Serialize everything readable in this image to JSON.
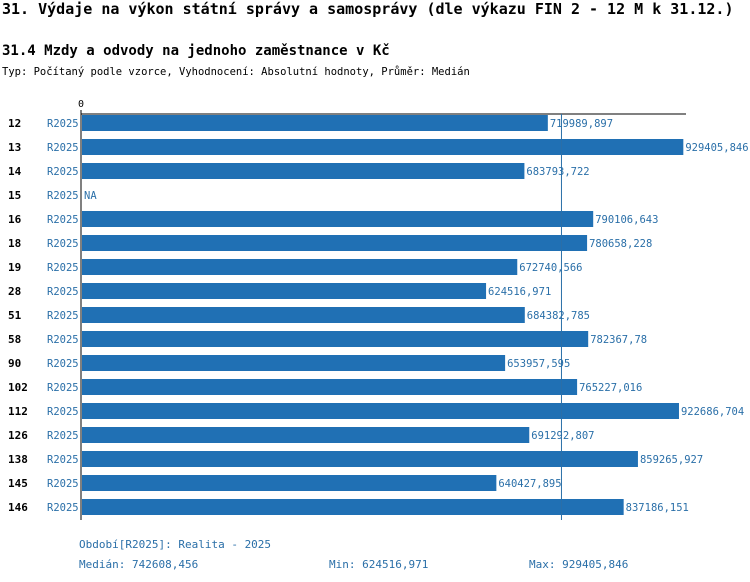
{
  "header": {
    "title": "31. Výdaje na výkon státní správy a samosprávy (dle výkazu FIN 2 - 12 M k 31.12.)",
    "subtitle": "31.4 Mzdy a odvody na jednoho zaměstnance v Kč",
    "meta": "Typ: Počítaný podle vzorce, Vyhodnocení: Absolutní hodnoty, Průměr: Medián"
  },
  "chart_data": {
    "type": "bar",
    "orientation": "horizontal",
    "axis_zero_label": "0",
    "xlim": [
      0,
      1000000
    ],
    "median": 742608.456,
    "series_label": "R2025",
    "rows": [
      {
        "id": "12",
        "series": "R2025",
        "value": 719989.897,
        "label": "719989,897"
      },
      {
        "id": "13",
        "series": "R2025",
        "value": 929405.846,
        "label": "929405,846"
      },
      {
        "id": "14",
        "series": "R2025",
        "value": 683793.722,
        "label": "683793,722"
      },
      {
        "id": "15",
        "series": "R2025",
        "value": null,
        "label": "NA"
      },
      {
        "id": "16",
        "series": "R2025",
        "value": 790106.643,
        "label": "790106,643"
      },
      {
        "id": "18",
        "series": "R2025",
        "value": 780658.228,
        "label": "780658,228"
      },
      {
        "id": "19",
        "series": "R2025",
        "value": 672740.566,
        "label": "672740,566"
      },
      {
        "id": "28",
        "series": "R2025",
        "value": 624516.971,
        "label": "624516,971"
      },
      {
        "id": "51",
        "series": "R2025",
        "value": 684382.785,
        "label": "684382,785"
      },
      {
        "id": "58",
        "series": "R2025",
        "value": 782367.78,
        "label": "782367,78"
      },
      {
        "id": "90",
        "series": "R2025",
        "value": 653957.595,
        "label": "653957,595"
      },
      {
        "id": "102",
        "series": "R2025",
        "value": 765227.016,
        "label": "765227,016"
      },
      {
        "id": "112",
        "series": "R2025",
        "value": 922686.704,
        "label": "922686,704"
      },
      {
        "id": "126",
        "series": "R2025",
        "value": 691292.807,
        "label": "691292,807"
      },
      {
        "id": "138",
        "series": "R2025",
        "value": 859265.927,
        "label": "859265,927"
      },
      {
        "id": "145",
        "series": "R2025",
        "value": 640427.895,
        "label": "640427,895"
      },
      {
        "id": "146",
        "series": "R2025",
        "value": 837186.151,
        "label": "837186,151"
      }
    ]
  },
  "footer": {
    "period": "Období[R2025]: Realita - 2025",
    "median": "Medián: 742608,456",
    "min": "Min: 624516,971",
    "max": "Max: 929405,846"
  },
  "colors": {
    "bar": "#2070b4",
    "series_text": "#2a6fa8",
    "median_line": "#2a6fa8"
  }
}
